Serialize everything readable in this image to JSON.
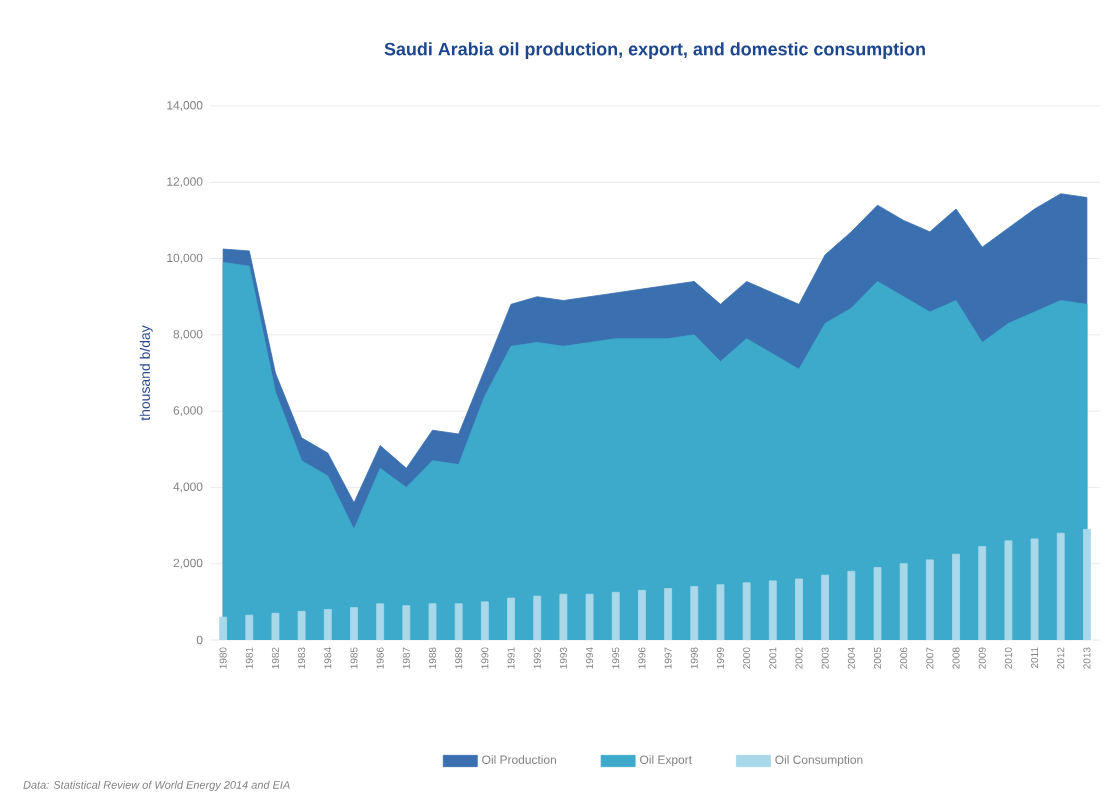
{
  "chart_data": {
    "type": "area",
    "title": "Saudi Arabia oil production, export, and domestic consumption",
    "ylabel": "thousand b/day",
    "categories": [
      "1980",
      "1981",
      "1982",
      "1983",
      "1984",
      "1985",
      "1986",
      "1987",
      "1988",
      "1989",
      "1990",
      "1991",
      "1992",
      "1993",
      "1994",
      "1995",
      "1996",
      "1997",
      "1998",
      "1999",
      "2000",
      "2001",
      "2002",
      "2003",
      "2004",
      "2005",
      "2006",
      "2007",
      "2008",
      "2009",
      "2010",
      "2011",
      "2012",
      "2013"
    ],
    "series": [
      {
        "name": "Oil Production",
        "color": "#3a6fb0",
        "values": [
          10250,
          10200,
          7000,
          5300,
          4900,
          3600,
          5100,
          4500,
          5500,
          5400,
          7100,
          8800,
          9000,
          8900,
          9000,
          9100,
          9200,
          9300,
          9400,
          8800,
          9400,
          9100,
          8800,
          10100,
          10700,
          11400,
          11000,
          10700,
          11300,
          10300,
          10800,
          11300,
          11700,
          11600
        ]
      },
      {
        "name": "Oil Export",
        "color": "#3eaacb",
        "values": [
          9900,
          9800,
          6500,
          4700,
          4300,
          2900,
          4500,
          4000,
          4700,
          4600,
          6400,
          7700,
          7800,
          7700,
          7800,
          7900,
          7900,
          7900,
          8000,
          7300,
          7900,
          7500,
          7100,
          8300,
          8700,
          9400,
          9000,
          8600,
          8900,
          7800,
          8300,
          8600,
          8900,
          8800
        ]
      },
      {
        "name": "Oil Consumption",
        "color": "#a8d8ea",
        "type": "bar",
        "values": [
          600,
          650,
          700,
          750,
          800,
          850,
          950,
          900,
          950,
          950,
          1000,
          1100,
          1150,
          1200,
          1200,
          1250,
          1300,
          1350,
          1400,
          1450,
          1500,
          1550,
          1600,
          1700,
          1800,
          1900,
          2000,
          2100,
          2250,
          2450,
          2600,
          2650,
          2800,
          2900
        ]
      }
    ],
    "ylim": [
      0,
      14000
    ],
    "yticks": [
      {
        "value": 0,
        "label": "0"
      },
      {
        "value": 2000,
        "label": "2,000"
      },
      {
        "value": 4000,
        "label": "4,000"
      },
      {
        "value": 6000,
        "label": "6,000"
      },
      {
        "value": 8000,
        "label": "8,000"
      },
      {
        "value": 10000,
        "label": "10,000"
      },
      {
        "value": 12000,
        "label": "12,000"
      },
      {
        "value": 14000,
        "label": "14,000"
      }
    ],
    "grid": "y",
    "legend": "bottom",
    "annotations": [
      "Data: Statistical Review of World Energy 2014 and EIA"
    ]
  }
}
